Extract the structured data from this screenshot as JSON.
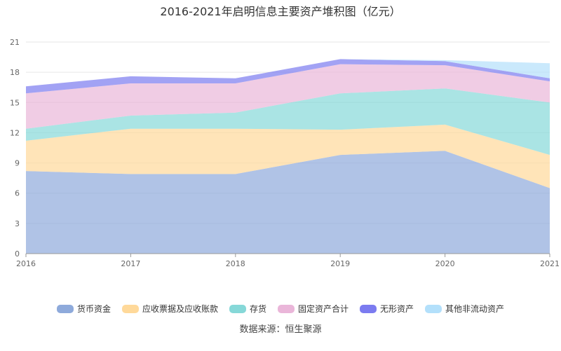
{
  "chart_data": {
    "type": "area",
    "stacked": true,
    "title": "2016-2021年启明信息主要资产堆积图（亿元）",
    "x": [
      "2016",
      "2017",
      "2018",
      "2019",
      "2020",
      "2021"
    ],
    "ylim": [
      0,
      21
    ],
    "yticks": [
      "0",
      "3",
      "6",
      "9",
      "12",
      "15",
      "18",
      "21"
    ],
    "grid": true,
    "legend_position": "bottom",
    "series": [
      {
        "name": "货币资金",
        "color": "#8eaadb",
        "values": [
          8.2,
          7.9,
          7.9,
          9.8,
          10.2,
          6.5
        ]
      },
      {
        "name": "应收票据及应收账款",
        "color": "#ffd99a",
        "values": [
          3.0,
          4.5,
          4.5,
          2.5,
          2.6,
          3.3
        ]
      },
      {
        "name": "存货",
        "color": "#86d8d8",
        "values": [
          1.2,
          1.3,
          1.6,
          3.6,
          3.6,
          5.2
        ]
      },
      {
        "name": "固定资产合计",
        "color": "#eab6d9",
        "values": [
          3.5,
          3.2,
          2.9,
          2.9,
          2.3,
          2.1
        ]
      },
      {
        "name": "无形资产",
        "color": "#7b7bf0",
        "values": [
          0.7,
          0.7,
          0.5,
          0.5,
          0.4,
          0.3
        ]
      },
      {
        "name": "其他非流动资产",
        "color": "#b3e0fb",
        "values": [
          0.0,
          0.0,
          0.0,
          0.0,
          0.1,
          1.5
        ]
      }
    ]
  },
  "source_text": "数据来源：恒生聚源"
}
